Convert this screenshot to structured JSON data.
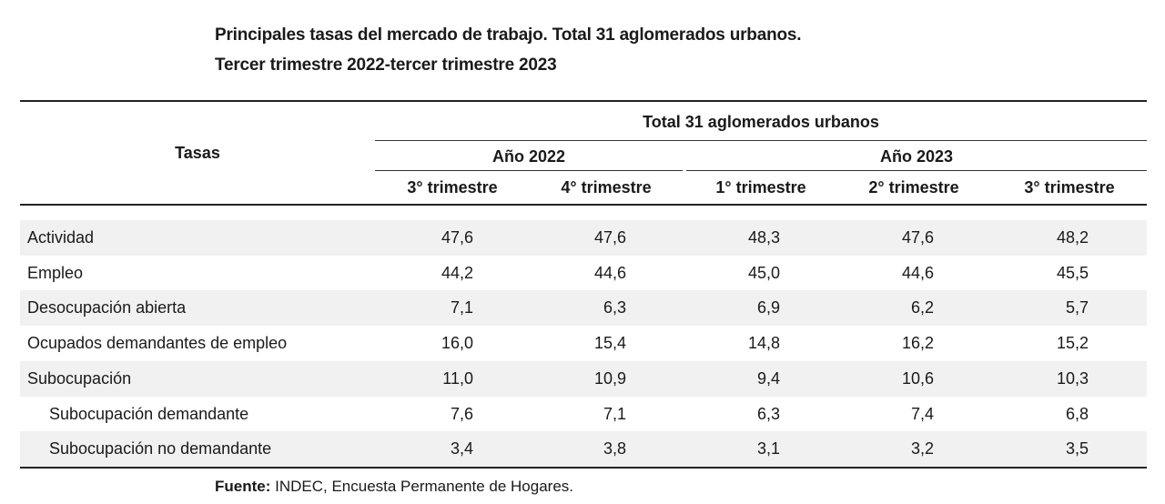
{
  "title": {
    "line1": "Principales tasas del mercado de trabajo. Total 31 aglomerados urbanos.",
    "line2": "Tercer trimestre 2022-tercer trimestre 2023"
  },
  "table": {
    "row_header": "Tasas",
    "group_header": "Total 31 aglomerados urbanos",
    "years": [
      "Año 2022",
      "Año 2023"
    ],
    "quarters": [
      "3° trimestre",
      "4° trimestre",
      "1° trimestre",
      "2° trimestre",
      "3° trimestre"
    ],
    "rows": [
      {
        "label": "Actividad",
        "indent": false,
        "values": [
          "47,6",
          "47,6",
          "48,3",
          "47,6",
          "48,2"
        ]
      },
      {
        "label": "Empleo",
        "indent": false,
        "values": [
          "44,2",
          "44,6",
          "45,0",
          "44,6",
          "45,5"
        ]
      },
      {
        "label": "Desocupación abierta",
        "indent": false,
        "values": [
          "7,1",
          "6,3",
          "6,9",
          "6,2",
          "5,7"
        ]
      },
      {
        "label": "Ocupados demandantes de empleo",
        "indent": false,
        "values": [
          "16,0",
          "15,4",
          "14,8",
          "16,2",
          "15,2"
        ]
      },
      {
        "label": "Subocupación",
        "indent": false,
        "values": [
          "11,0",
          "10,9",
          "9,4",
          "10,6",
          "10,3"
        ]
      },
      {
        "label": "Subocupación demandante",
        "indent": true,
        "values": [
          "7,6",
          "7,1",
          "6,3",
          "7,4",
          "6,8"
        ]
      },
      {
        "label": "Subocupación no demandante",
        "indent": true,
        "values": [
          "3,4",
          "3,8",
          "3,1",
          "3,2",
          "3,5"
        ]
      }
    ]
  },
  "source": {
    "label": "Fuente:",
    "text": " INDEC, Encuesta Permanente de Hogares."
  }
}
